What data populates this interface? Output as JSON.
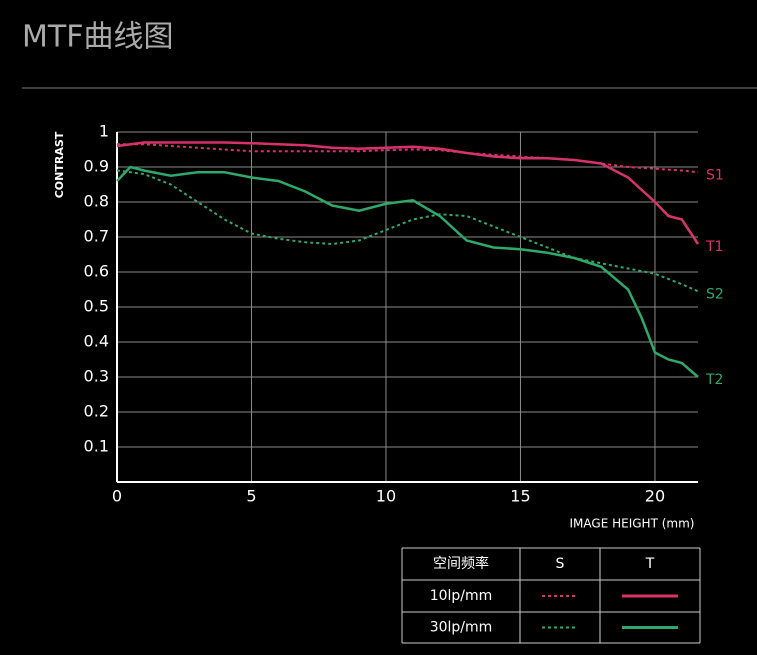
{
  "chart_data": {
    "type": "line",
    "title": "MTF曲线图",
    "y_label": "CONTRAST",
    "x_label": "IMAGE HEIGHT (mm)",
    "xlim": [
      0,
      21.6
    ],
    "ylim": [
      0,
      1
    ],
    "xticks": [
      0,
      5,
      10,
      15,
      20
    ],
    "yticks": [
      0.1,
      0.2,
      0.3,
      0.4,
      0.5,
      0.6,
      0.7,
      0.8,
      0.9,
      1
    ],
    "grid": true,
    "series": [
      {
        "name": "S1",
        "color": "#d6336c",
        "dash": "dotted",
        "x": [
          0,
          1,
          2,
          3,
          4,
          5,
          6,
          7,
          8,
          9,
          10,
          11,
          12,
          13,
          14,
          15,
          16,
          17,
          18,
          19,
          20,
          21,
          21.6
        ],
        "values": [
          0.965,
          0.965,
          0.96,
          0.955,
          0.95,
          0.945,
          0.945,
          0.945,
          0.945,
          0.945,
          0.948,
          0.95,
          0.948,
          0.94,
          0.935,
          0.93,
          0.925,
          0.92,
          0.91,
          0.9,
          0.895,
          0.89,
          0.885
        ]
      },
      {
        "name": "T1",
        "color": "#d6336c",
        "dash": "solid",
        "x": [
          0,
          1,
          2,
          3,
          4,
          5,
          6,
          7,
          8,
          9,
          10,
          11,
          12,
          13,
          14,
          15,
          16,
          17,
          18,
          19,
          20,
          20.5,
          21,
          21.6
        ],
        "values": [
          0.96,
          0.97,
          0.97,
          0.97,
          0.97,
          0.968,
          0.965,
          0.962,
          0.955,
          0.952,
          0.955,
          0.958,
          0.952,
          0.94,
          0.93,
          0.925,
          0.925,
          0.92,
          0.91,
          0.87,
          0.8,
          0.76,
          0.75,
          0.68
        ]
      },
      {
        "name": "S2",
        "color": "#2fa86a",
        "dash": "dotted",
        "x": [
          0,
          1,
          2,
          3,
          4,
          5,
          6,
          7,
          8,
          9,
          10,
          11,
          12,
          13,
          14,
          15,
          16,
          17,
          18,
          19,
          20,
          21,
          21.6
        ],
        "values": [
          0.89,
          0.88,
          0.85,
          0.8,
          0.75,
          0.71,
          0.695,
          0.685,
          0.68,
          0.69,
          0.72,
          0.75,
          0.765,
          0.76,
          0.73,
          0.7,
          0.67,
          0.64,
          0.625,
          0.61,
          0.595,
          0.565,
          0.545
        ]
      },
      {
        "name": "T2",
        "color": "#2fa86a",
        "dash": "solid",
        "x": [
          0,
          0.5,
          1,
          2,
          3,
          4,
          5,
          6,
          7,
          8,
          9,
          10,
          11,
          12,
          13,
          14,
          15,
          16,
          17,
          18,
          19,
          19.5,
          20,
          20.5,
          21,
          21.6
        ],
        "values": [
          0.86,
          0.9,
          0.89,
          0.875,
          0.885,
          0.885,
          0.87,
          0.86,
          0.83,
          0.79,
          0.775,
          0.795,
          0.805,
          0.76,
          0.69,
          0.67,
          0.665,
          0.655,
          0.64,
          0.615,
          0.55,
          0.47,
          0.37,
          0.35,
          0.34,
          0.3
        ]
      }
    ],
    "legend": {
      "header": [
        "空间频率",
        "S",
        "T"
      ],
      "rows": [
        "10lp/mm",
        "30lp/mm"
      ]
    }
  }
}
